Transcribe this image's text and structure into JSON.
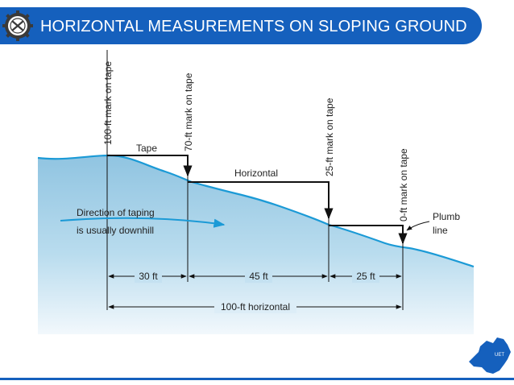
{
  "header": {
    "title": "HORIZONTAL MEASUREMENTS ON SLOPING GROUND",
    "logo_icon": "university-gear-logo",
    "bar_color": "#1560bd"
  },
  "diagram": {
    "tape_marks": {
      "mark_100": "100-ft mark on tape",
      "mark_70": "70-ft mark on tape",
      "mark_25": "25-ft mark on tape",
      "mark_0": "0-ft mark on tape"
    },
    "labels": {
      "tape": "Tape",
      "horizontal": "Horizontal",
      "plumb_line_1": "Plumb",
      "plumb_line_2": "line",
      "direction_1": "Direction of taping",
      "direction_2": "is usually downhill"
    },
    "dimensions": {
      "d30": "30 ft",
      "d45": "45 ft",
      "d25": "25 ft",
      "total": "100-ft horizontal"
    },
    "colors": {
      "ground": "#9ccbe4",
      "ground_line": "#1b9ad6",
      "tape": "#111111"
    }
  },
  "footer": {
    "map_icon": "pakistan-map-icon",
    "map_label": "UET",
    "line_color": "#1560bd"
  }
}
